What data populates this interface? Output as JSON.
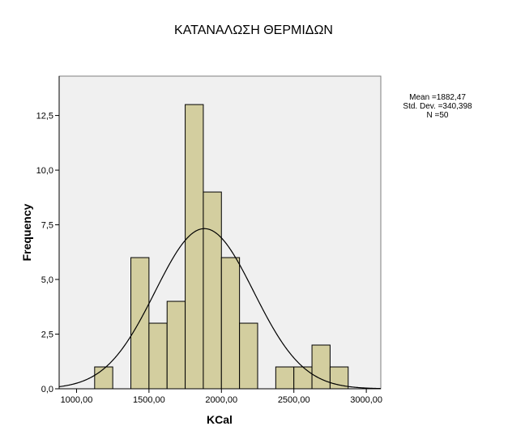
{
  "chart_data": {
    "type": "bar",
    "subtype": "histogram",
    "title": "ΚΑΤΑΝΑΛΩΣΗ ΘΕΡΜΙΔΩΝ",
    "xlabel": "KCal",
    "ylabel": "Frequency",
    "xlim": [
      880,
      3100
    ],
    "ylim": [
      0,
      14.3
    ],
    "grid": false,
    "x_ticks": [
      {
        "value": 1000,
        "label": "1000,00"
      },
      {
        "value": 1500,
        "label": "1500,00"
      },
      {
        "value": 2000,
        "label": "2000,00"
      },
      {
        "value": 2500,
        "label": "2500,00"
      },
      {
        "value": 3000,
        "label": "3000,00"
      }
    ],
    "y_ticks": [
      {
        "value": 0,
        "label": "0,0"
      },
      {
        "value": 2.5,
        "label": "2,5"
      },
      {
        "value": 5,
        "label": "5,0"
      },
      {
        "value": 7.5,
        "label": "7,5"
      },
      {
        "value": 10,
        "label": "10,0"
      },
      {
        "value": 12.5,
        "label": "12,5"
      }
    ],
    "bin_width": 125,
    "bins": [
      {
        "start": 1125,
        "end": 1250,
        "count": 1
      },
      {
        "start": 1375,
        "end": 1500,
        "count": 6
      },
      {
        "start": 1500,
        "end": 1625,
        "count": 3
      },
      {
        "start": 1625,
        "end": 1750,
        "count": 4
      },
      {
        "start": 1750,
        "end": 1875,
        "count": 13
      },
      {
        "start": 1875,
        "end": 2000,
        "count": 9
      },
      {
        "start": 2000,
        "end": 2125,
        "count": 6
      },
      {
        "start": 2125,
        "end": 2250,
        "count": 3
      },
      {
        "start": 2375,
        "end": 2500,
        "count": 1
      },
      {
        "start": 2500,
        "end": 2625,
        "count": 1
      },
      {
        "start": 2625,
        "end": 2750,
        "count": 2
      },
      {
        "start": 2750,
        "end": 2875,
        "count": 1
      }
    ],
    "normal_curve": {
      "mean": 1882.47,
      "std_dev": 340.398,
      "n": 50
    },
    "stats_box": {
      "mean": "Mean =1882,47",
      "std_dev": "Std. Dev. =340,398",
      "n": "N =50"
    },
    "legend_position": "top-right"
  },
  "colors": {
    "bar_fill": "#d3ce9f",
    "bar_stroke": "#000000",
    "plot_bg": "#f0f0f0",
    "plot_border": "#7f7f7f",
    "curve": "#000000"
  }
}
